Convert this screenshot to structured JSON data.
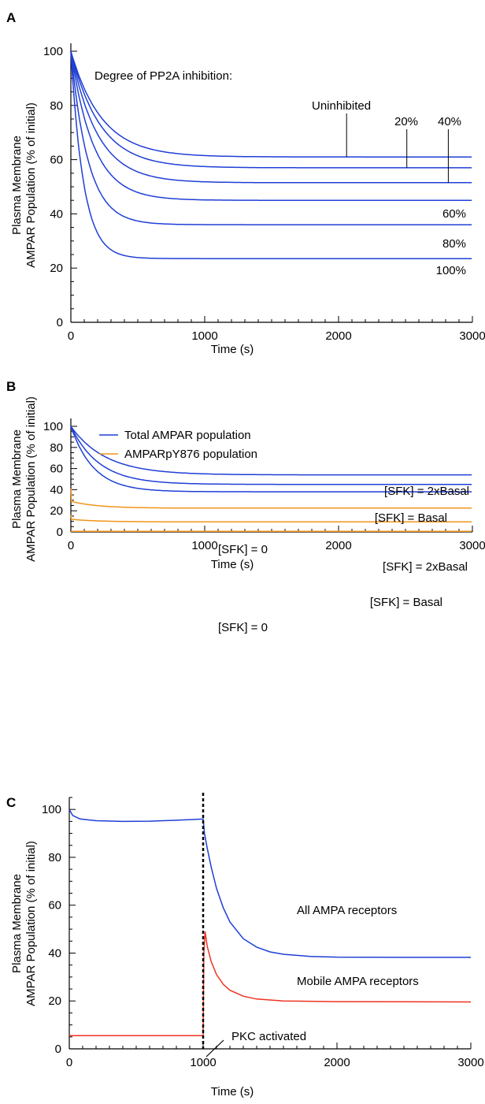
{
  "panels": [
    {
      "letter": "A"
    },
    {
      "letter": "B"
    },
    {
      "letter": "C"
    }
  ],
  "colors": {
    "blue": "#1f3fd6",
    "orange": "#f29419",
    "red": "#ee3322",
    "axis": "#000000"
  },
  "chart_data": [
    {
      "type": "line",
      "panel": "A",
      "xlabel": "Time (s)",
      "ylabel_line1": "Plasma Membrane",
      "ylabel_line2": "AMPAR Population (% of initial)",
      "xlim": [
        0,
        3000
      ],
      "ylim": [
        0,
        100
      ],
      "xticks": [
        "0",
        "1000",
        "2000",
        "3000"
      ],
      "yticks": [
        "0",
        "20",
        "40",
        "60",
        "80",
        "100"
      ],
      "annotation": "Degree of PP2A inhibition:",
      "series": [
        {
          "name": "Uninhibited",
          "color": "#1f3fd6",
          "start": 100,
          "end": 61,
          "tau": 230
        },
        {
          "name": "20%",
          "color": "#1f3fd6",
          "start": 100,
          "end": 57,
          "tau": 220
        },
        {
          "name": "40%",
          "color": "#1f3fd6",
          "start": 100,
          "end": 51.5,
          "tau": 200
        },
        {
          "name": "60%",
          "color": "#1f3fd6",
          "start": 100,
          "end": 45,
          "tau": 170
        },
        {
          "name": "80%",
          "color": "#1f3fd6",
          "start": 100,
          "end": 36,
          "tau": 130
        },
        {
          "name": "100%",
          "color": "#1f3fd6",
          "start": 100,
          "end": 23.5,
          "tau": 95
        }
      ]
    },
    {
      "type": "line",
      "panel": "B",
      "xlabel": "Time (s)",
      "ylabel_line1": "Plasma Membrane",
      "ylabel_line2": "AMPAR Population (% of initial)",
      "xlim": [
        0,
        3000
      ],
      "ylim": [
        0,
        100
      ],
      "xticks": [
        "0",
        "1000",
        "2000",
        "3000"
      ],
      "yticks": [
        "0",
        "20",
        "40",
        "60",
        "80",
        "100"
      ],
      "legend": [
        {
          "label": "Total AMPAR population",
          "color": "#1f3fd6"
        },
        {
          "label": "AMPARpY876 population",
          "color": "#f29419"
        }
      ],
      "series": [
        {
          "name": "[SFK] = 2xBasal",
          "group": "Total AMPAR population",
          "color": "#1f3fd6",
          "start": 100,
          "end": 54,
          "tau": 260
        },
        {
          "name": "[SFK] = Basal",
          "group": "Total AMPAR population",
          "color": "#1f3fd6",
          "start": 100,
          "end": 45,
          "tau": 210
        },
        {
          "name": "[SFK] = 0",
          "group": "Total AMPAR population",
          "color": "#1f3fd6",
          "start": 100,
          "end": 38,
          "tau": 170
        },
        {
          "name": "[SFK] = 2xBasal",
          "group": "AMPARpY876 population",
          "color": "#f29419",
          "start": 29,
          "end": 22.5,
          "tau": 200,
          "spike": 41
        },
        {
          "name": "[SFK] = Basal",
          "group": "AMPARpY876 population",
          "color": "#f29419",
          "start": 12,
          "end": 9.5,
          "tau": 200,
          "spike": 16
        },
        {
          "name": "[SFK] = 0",
          "group": "AMPARpY876 population",
          "color": "#f29419",
          "start": 0.5,
          "end": 0.5,
          "tau": 200
        }
      ]
    },
    {
      "type": "line",
      "panel": "C",
      "xlabel": "Time (s)",
      "ylabel_line1": "Plasma Membrane",
      "ylabel_line2": "AMPAR Population (% of initial)",
      "xlim": [
        0,
        3000
      ],
      "ylim": [
        0,
        105
      ],
      "xticks": [
        "0",
        "1000",
        "2000",
        "3000"
      ],
      "yticks": [
        "0",
        "20",
        "40",
        "60",
        "80",
        "100"
      ],
      "event": {
        "x": 1000,
        "label": "PKC activated"
      },
      "series": [
        {
          "name": "All AMPA receptors",
          "color": "#1f3fd6",
          "points": [
            [
              0,
              100
            ],
            [
              25,
              97.5
            ],
            [
              80,
              96
            ],
            [
              200,
              95.3
            ],
            [
              400,
              95
            ],
            [
              600,
              95.1
            ],
            [
              800,
              95.5
            ],
            [
              1000,
              96
            ],
            [
              1010,
              90
            ],
            [
              1030,
              84
            ],
            [
              1060,
              76
            ],
            [
              1100,
              67
            ],
            [
              1150,
              59
            ],
            [
              1200,
              53
            ],
            [
              1300,
              46
            ],
            [
              1400,
              42.5
            ],
            [
              1500,
              40.5
            ],
            [
              1600,
              39.5
            ],
            [
              1800,
              38.6
            ],
            [
              2000,
              38.3
            ],
            [
              2500,
              38.2
            ],
            [
              3000,
              38.2
            ]
          ]
        },
        {
          "name": "Mobile AMPA receptors",
          "color": "#ee3322",
          "points": [
            [
              0,
              5.5
            ],
            [
              1000,
              5.5
            ],
            [
              1005,
              40
            ],
            [
              1015,
              49
            ],
            [
              1030,
              43
            ],
            [
              1060,
              36.5
            ],
            [
              1100,
              31
            ],
            [
              1150,
              27
            ],
            [
              1200,
              24.5
            ],
            [
              1300,
              22
            ],
            [
              1400,
              20.8
            ],
            [
              1600,
              20
            ],
            [
              2000,
              19.7
            ],
            [
              3000,
              19.6
            ]
          ]
        }
      ]
    }
  ]
}
